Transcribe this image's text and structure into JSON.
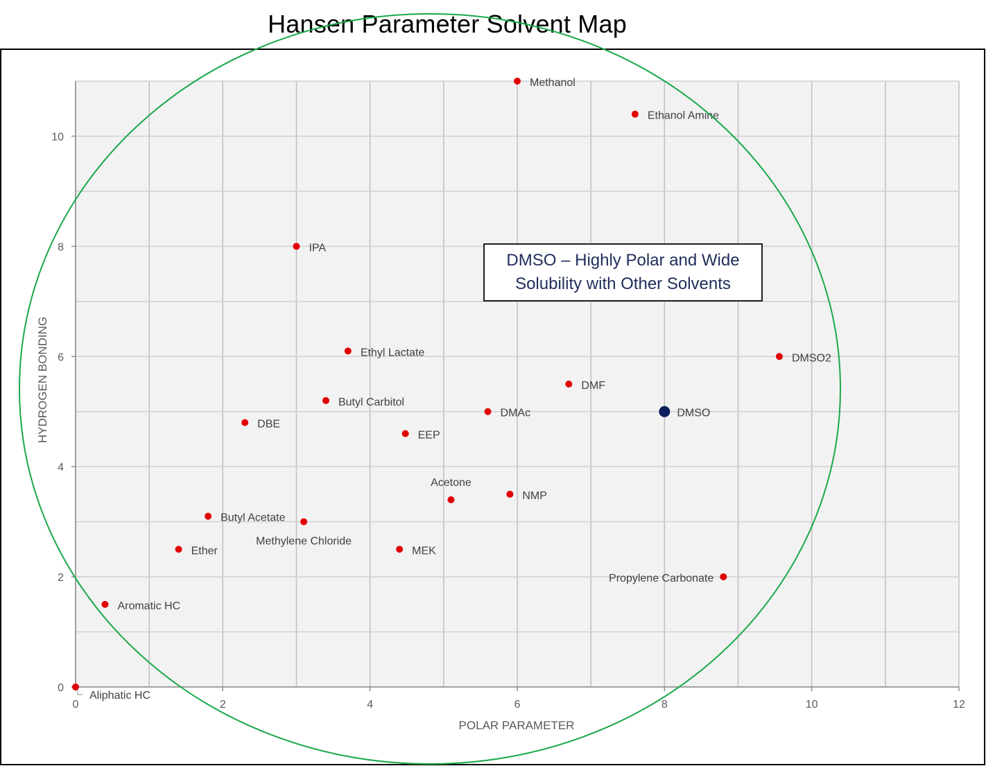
{
  "chart_data": {
    "type": "scatter",
    "title": "Hansen Parameter Solvent Map",
    "xlabel": "POLAR PARAMETER",
    "ylabel": "HYDROGEN BONDING",
    "xlim": [
      0,
      12
    ],
    "ylim": [
      0,
      11
    ],
    "xticks": [
      "0",
      "2",
      "4",
      "6",
      "8",
      "10",
      "12"
    ],
    "yticks": [
      "0",
      "2",
      "4",
      "6",
      "8",
      "10"
    ],
    "grid": true,
    "point_color": "#e00000",
    "highlight_color": "#0d1f5c",
    "circle_color": "#1aa84a",
    "annotation": {
      "line1": "DMSO – Highly Polar and Wide",
      "line2": "Solubility with Other Solvents"
    },
    "points": [
      {
        "label": "Methanol",
        "x": 6.0,
        "y": 11.0,
        "label_pos": "right"
      },
      {
        "label": "Ethanol Amine",
        "x": 7.6,
        "y": 10.4,
        "label_pos": "right"
      },
      {
        "label": "IPA",
        "x": 3.0,
        "y": 8.0,
        "label_pos": "right"
      },
      {
        "label": "Ethyl Lactate",
        "x": 3.7,
        "y": 6.1,
        "label_pos": "right"
      },
      {
        "label": "DMSO2",
        "x": 9.56,
        "y": 6.0,
        "label_pos": "right"
      },
      {
        "label": "DMF",
        "x": 6.7,
        "y": 5.5,
        "label_pos": "right"
      },
      {
        "label": "Butyl Carbitol",
        "x": 3.4,
        "y": 5.2,
        "label_pos": "right"
      },
      {
        "label": "DMAc",
        "x": 5.6,
        "y": 5.0,
        "label_pos": "right"
      },
      {
        "label": "DMSO",
        "x": 8.0,
        "y": 5.0,
        "label_pos": "right",
        "highlight": true
      },
      {
        "label": "DBE",
        "x": 2.3,
        "y": 4.8,
        "label_pos": "right"
      },
      {
        "label": "EEP",
        "x": 4.48,
        "y": 4.6,
        "label_pos": "right"
      },
      {
        "label": "Acetone",
        "x": 5.1,
        "y": 3.4,
        "label_pos": "above"
      },
      {
        "label": "NMP",
        "x": 5.9,
        "y": 3.5,
        "label_pos": "right"
      },
      {
        "label": "Butyl Acetate",
        "x": 1.8,
        "y": 3.1,
        "label_pos": "right"
      },
      {
        "label": "Methylene Chloride",
        "x": 3.1,
        "y": 3.0,
        "label_pos": "below"
      },
      {
        "label": "Ether",
        "x": 1.4,
        "y": 2.5,
        "label_pos": "right"
      },
      {
        "label": "MEK",
        "x": 4.4,
        "y": 2.5,
        "label_pos": "right"
      },
      {
        "label": "Propylene Carbonate",
        "x": 8.8,
        "y": 2.0,
        "label_pos": "left"
      },
      {
        "label": "Aromatic HC",
        "x": 0.4,
        "y": 1.5,
        "label_pos": "right"
      },
      {
        "label": "Aliphatic HC",
        "x": 0.0,
        "y": 0.0,
        "label_pos": "below-right"
      }
    ]
  }
}
